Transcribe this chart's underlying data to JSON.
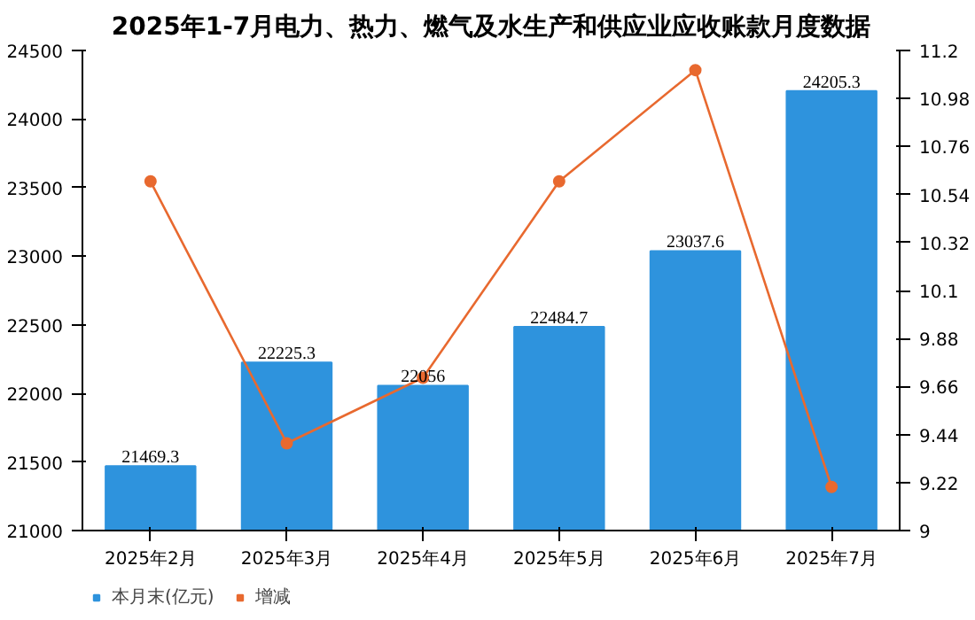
{
  "chart_data": {
    "type": "bar",
    "title": "2025年1-7月电力、热力、燃气及水生产和供应业应收账款月度数据",
    "categories": [
      "2025年2月",
      "2025年3月",
      "2025年4月",
      "2025年5月",
      "2025年6月",
      "2025年7月"
    ],
    "series": [
      {
        "name": "本月末(亿元)",
        "color": "#2e93dd",
        "values": [
          21469.3,
          22225.3,
          22056,
          22484.7,
          23037.6,
          24205.3
        ],
        "value_labels": [
          "21469.3",
          "22225.3",
          "22056",
          "22484.7",
          "23037.6",
          "24205.3"
        ]
      },
      {
        "name": "增减",
        "type": "line",
        "axis": "y2",
        "color": "#e8692f",
        "marker": "circle",
        "values": [
          10.6,
          9.4,
          9.7,
          10.6,
          11.11,
          9.2
        ]
      }
    ],
    "ylim": [
      21000,
      24500
    ],
    "yticks": [
      21000,
      21500,
      22000,
      22500,
      23000,
      23500,
      24000,
      24500
    ],
    "y2lim": [
      9,
      11.2
    ],
    "y2ticks": [
      9,
      {
        "value": 9.22,
        "label": "9.22"
      },
      {
        "value": 9.44,
        "label": "9.44"
      },
      {
        "value": 9.66,
        "label": "9.66"
      },
      {
        "value": 9.88,
        "label": "9.88"
      },
      {
        "value": 10.1,
        "label": "10.1"
      },
      {
        "value": 10.32,
        "label": "10.32"
      },
      {
        "value": 10.54,
        "label": "10.54"
      },
      {
        "value": 10.76,
        "label": "10.76"
      },
      {
        "value": 10.98,
        "label": "10.98"
      },
      {
        "value": 11.2,
        "label": "11.2"
      }
    ],
    "grid": false,
    "legend": "bottom left"
  }
}
